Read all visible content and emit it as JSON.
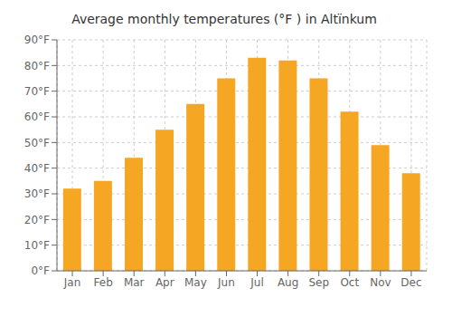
{
  "chart_data": {
    "type": "bar",
    "title": "Average monthly temperatures (°F ) in Altı̈nkum",
    "categories": [
      "Jan",
      "Feb",
      "Mar",
      "Apr",
      "May",
      "Jun",
      "Jul",
      "Aug",
      "Sep",
      "Oct",
      "Nov",
      "Dec"
    ],
    "values": [
      32,
      35,
      44,
      55,
      65,
      75,
      83,
      82,
      75,
      62,
      49,
      38
    ],
    "color": "#F5A623",
    "ylim": [
      0,
      90
    ],
    "yticks": [
      {
        "value": 0,
        "label": "0°F"
      },
      {
        "value": 10,
        "label": "10°F"
      },
      {
        "value": 20,
        "label": "20°F"
      },
      {
        "value": 30,
        "label": "30°F"
      },
      {
        "value": 40,
        "label": "40°F"
      },
      {
        "value": 50,
        "label": "50°F"
      },
      {
        "value": 60,
        "label": "60°F"
      },
      {
        "value": 70,
        "label": "70°F"
      },
      {
        "value": 80,
        "label": "80°F"
      },
      {
        "value": 90,
        "label": "90°F"
      }
    ],
    "grid": true
  }
}
